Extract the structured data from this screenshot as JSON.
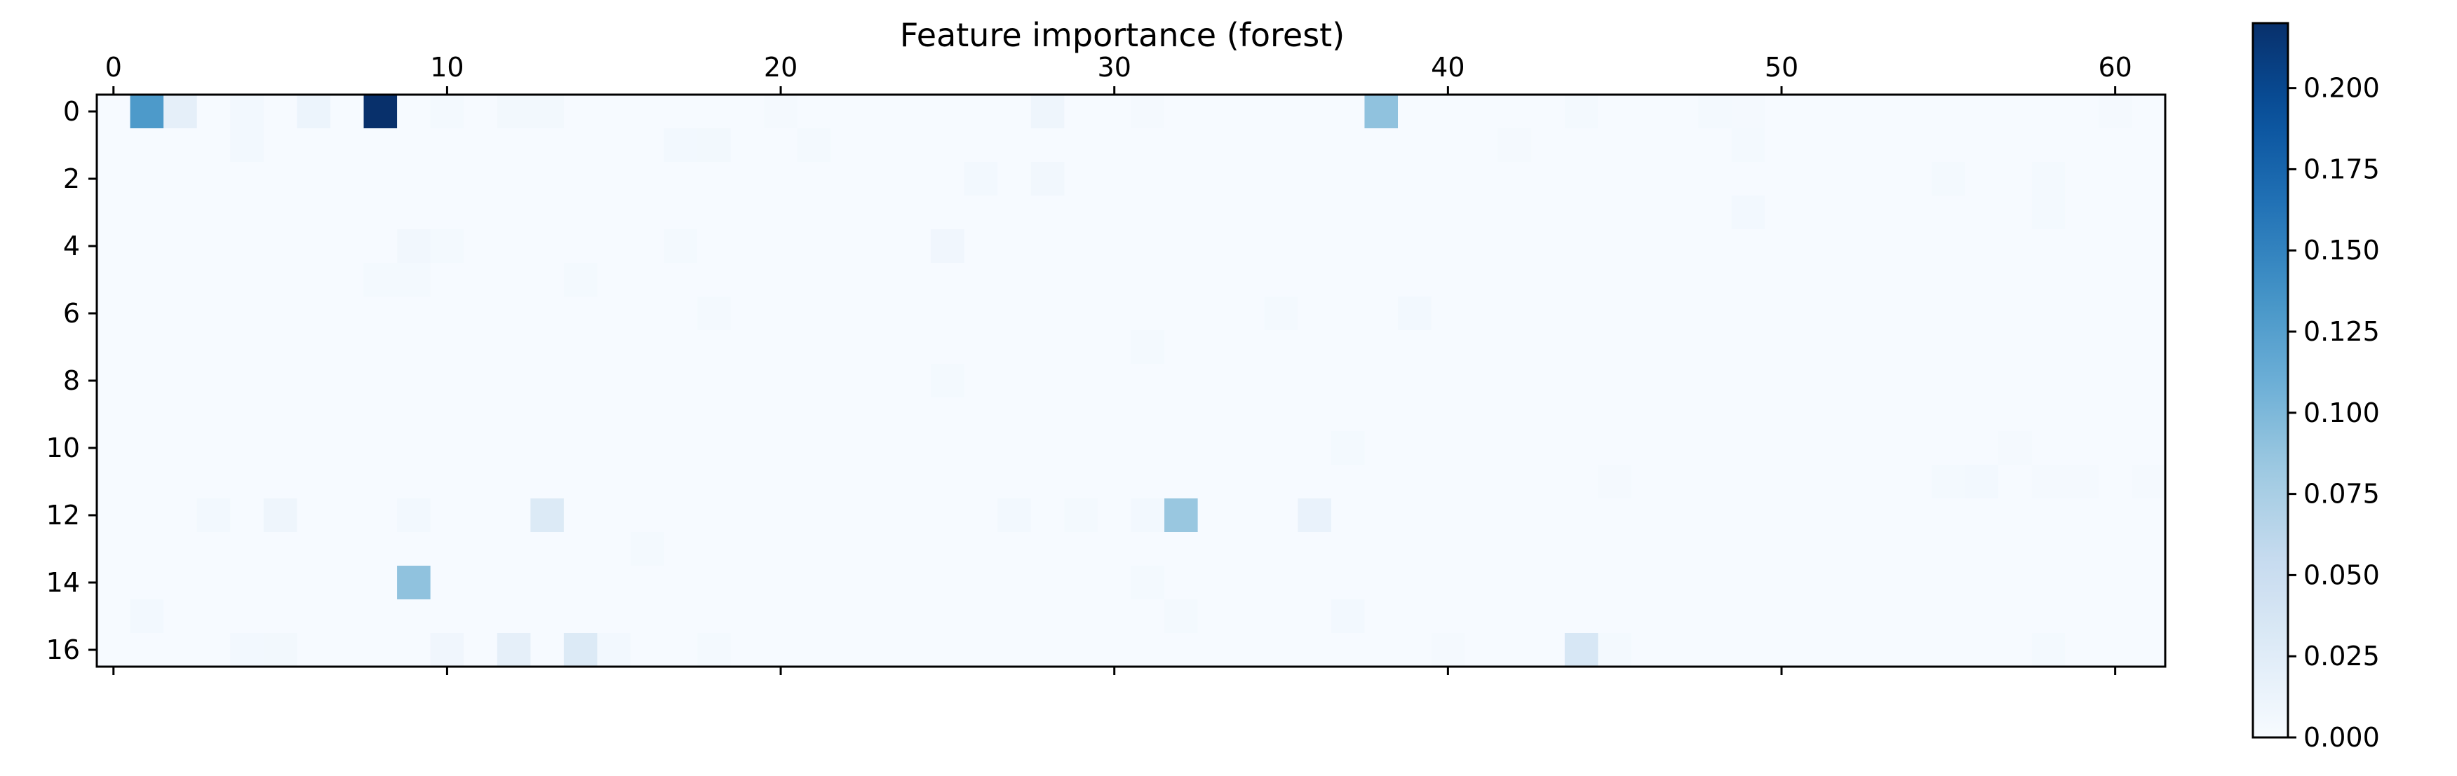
{
  "chart_data": {
    "type": "heatmap",
    "title": "Feature importance (forest)",
    "xlabel": "",
    "ylabel": "",
    "rows": 17,
    "cols": 62,
    "x_axis_position": "top",
    "x_ticks": [
      0,
      10,
      20,
      30,
      40,
      50,
      60
    ],
    "y_ticks": [
      0,
      2,
      4,
      6,
      8,
      10,
      12,
      14,
      16
    ],
    "x_range": [
      -0.5,
      61.5
    ],
    "y_range": [
      -0.5,
      16.5
    ],
    "grid": false,
    "colormap": "Blues",
    "colorbar": {
      "range": [
        0.0,
        0.22
      ],
      "ticks": [
        0.0,
        0.025,
        0.05,
        0.075,
        0.1,
        0.125,
        0.15,
        0.175,
        0.2
      ],
      "tick_labels": [
        "0.000",
        "0.025",
        "0.050",
        "0.075",
        "0.100",
        "0.125",
        "0.150",
        "0.175",
        "0.200"
      ],
      "placement": "right"
    },
    "default_value": 0.001,
    "cells": [
      [
        0,
        1,
        0.13
      ],
      [
        0,
        2,
        0.02
      ],
      [
        0,
        4,
        0.005
      ],
      [
        0,
        6,
        0.012
      ],
      [
        0,
        8,
        0.22
      ],
      [
        0,
        10,
        0.004
      ],
      [
        0,
        12,
        0.006
      ],
      [
        0,
        13,
        0.006
      ],
      [
        0,
        20,
        0.003
      ],
      [
        0,
        28,
        0.01
      ],
      [
        0,
        31,
        0.003
      ],
      [
        0,
        38,
        0.09
      ],
      [
        0,
        44,
        0.004
      ],
      [
        0,
        48,
        0.004
      ],
      [
        0,
        49,
        0.003
      ],
      [
        0,
        60,
        0.003
      ],
      [
        1,
        4,
        0.005
      ],
      [
        1,
        17,
        0.005
      ],
      [
        1,
        18,
        0.006
      ],
      [
        1,
        21,
        0.004
      ],
      [
        1,
        42,
        0.003
      ],
      [
        1,
        49,
        0.004
      ],
      [
        2,
        26,
        0.005
      ],
      [
        2,
        28,
        0.007
      ],
      [
        2,
        55,
        0.004
      ],
      [
        2,
        58,
        0.004
      ],
      [
        3,
        49,
        0.005
      ],
      [
        3,
        58,
        0.004
      ],
      [
        4,
        9,
        0.007
      ],
      [
        4,
        10,
        0.004
      ],
      [
        4,
        17,
        0.004
      ],
      [
        4,
        25,
        0.008
      ],
      [
        5,
        8,
        0.004
      ],
      [
        5,
        9,
        0.004
      ],
      [
        5,
        14,
        0.004
      ],
      [
        6,
        18,
        0.004
      ],
      [
        6,
        35,
        0.004
      ],
      [
        6,
        39,
        0.005
      ],
      [
        7,
        31,
        0.004
      ],
      [
        8,
        25,
        0.004
      ],
      [
        10,
        37,
        0.004
      ],
      [
        10,
        57,
        0.003
      ],
      [
        11,
        45,
        0.003
      ],
      [
        11,
        55,
        0.004
      ],
      [
        11,
        56,
        0.005
      ],
      [
        11,
        58,
        0.003
      ],
      [
        11,
        59,
        0.003
      ],
      [
        11,
        61,
        0.003
      ],
      [
        12,
        3,
        0.005
      ],
      [
        12,
        5,
        0.01
      ],
      [
        12,
        9,
        0.005
      ],
      [
        12,
        13,
        0.03
      ],
      [
        12,
        27,
        0.005
      ],
      [
        12,
        29,
        0.004
      ],
      [
        12,
        31,
        0.005
      ],
      [
        12,
        32,
        0.085
      ],
      [
        12,
        36,
        0.015
      ],
      [
        13,
        16,
        0.004
      ],
      [
        14,
        9,
        0.09
      ],
      [
        14,
        31,
        0.004
      ],
      [
        15,
        1,
        0.005
      ],
      [
        15,
        32,
        0.004
      ],
      [
        15,
        37,
        0.005
      ],
      [
        16,
        4,
        0.005
      ],
      [
        16,
        5,
        0.006
      ],
      [
        16,
        10,
        0.008
      ],
      [
        16,
        12,
        0.02
      ],
      [
        16,
        14,
        0.03
      ],
      [
        16,
        15,
        0.005
      ],
      [
        16,
        18,
        0.004
      ],
      [
        16,
        40,
        0.003
      ],
      [
        16,
        44,
        0.035
      ],
      [
        16,
        45,
        0.004
      ],
      [
        16,
        58,
        0.004
      ]
    ]
  }
}
